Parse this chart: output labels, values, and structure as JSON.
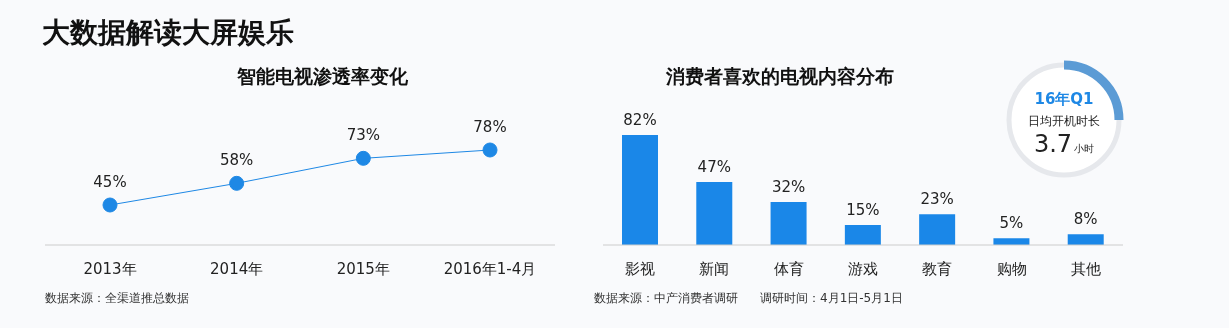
{
  "chart_data": [
    {
      "type": "other",
      "title": "大数据解读大屏娱乐"
    },
    {
      "type": "line",
      "title": "智能电视渗透率变化",
      "categories": [
        "2013年",
        "2014年",
        "2015年",
        "2016年1-4月"
      ],
      "values": [
        45,
        58,
        73,
        78
      ],
      "value_labels": [
        "45%",
        "58%",
        "73%",
        "78%"
      ],
      "color": "#1e88e5",
      "marker": "circle",
      "line_style": "solid",
      "annotations": [
        "数据来源：全渠道推总数据"
      ]
    },
    {
      "type": "bar",
      "title": "消费者喜欢的电视内容分布",
      "categories": [
        "影视",
        "新闻",
        "体育",
        "游戏",
        "教育",
        "购物",
        "其他"
      ],
      "values": [
        82,
        47,
        32,
        15,
        23,
        5,
        8
      ],
      "value_labels": [
        "82%",
        "47%",
        "32%",
        "15%",
        "23%",
        "5%",
        "8%"
      ],
      "color": "#1a87e8",
      "annotations": [
        "数据来源：中产消费者调研",
        "调研时间：4月1日-5月1日"
      ]
    },
    {
      "type": "other",
      "title": "16年Q1",
      "annotations": [
        "日均开机时长",
        "3.7",
        "小时"
      ]
    }
  ]
}
